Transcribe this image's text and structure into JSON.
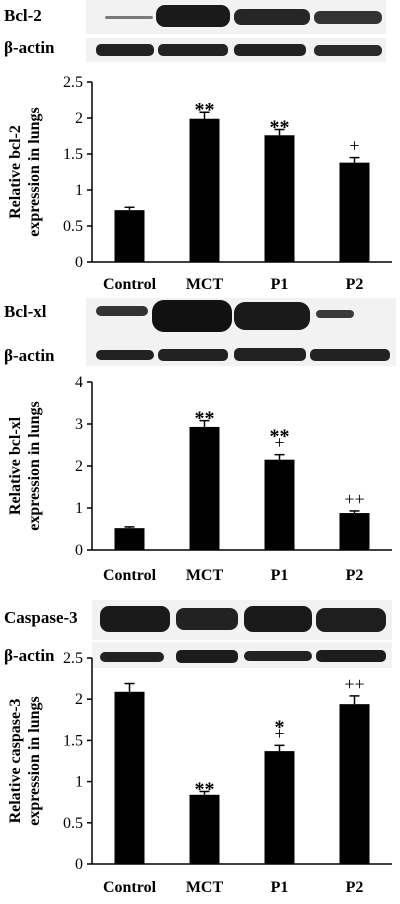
{
  "panels": [
    {
      "blots": {
        "target_label": "Bcl-2",
        "control_label": "β-actin"
      },
      "chart_data": {
        "type": "bar",
        "categories": [
          "Control",
          "MCT",
          "P1",
          "P2"
        ],
        "values": [
          0.72,
          1.99,
          1.76,
          1.38
        ],
        "errors": [
          0.04,
          0.09,
          0.08,
          0.07
        ],
        "annotations": [
          [],
          [
            "**"
          ],
          [
            "**"
          ],
          [
            "+"
          ]
        ],
        "ylabel_lines": [
          "Relative bcl-2",
          "expression in lungs"
        ],
        "xlabel": "",
        "ylim": [
          0,
          2.5
        ],
        "yticks": [
          0,
          0.5,
          1,
          1.5,
          2,
          2.5
        ],
        "grid": false,
        "bar_color": "#000000"
      }
    },
    {
      "blots": {
        "target_label": "Bcl-xl",
        "control_label": "β-actin"
      },
      "chart_data": {
        "type": "bar",
        "categories": [
          "Control",
          "MCT",
          "P1",
          "P2"
        ],
        "values": [
          0.52,
          2.93,
          2.15,
          0.88
        ],
        "errors": [
          0.03,
          0.15,
          0.12,
          0.05
        ],
        "annotations": [
          [],
          [
            "**"
          ],
          [
            "**",
            "+"
          ],
          [
            "++"
          ]
        ],
        "ylabel_lines": [
          "Relative bcl-xl",
          "expression in lungs"
        ],
        "xlabel": "",
        "ylim": [
          0,
          4
        ],
        "yticks": [
          0,
          1,
          2,
          3,
          4
        ],
        "grid": false,
        "bar_color": "#000000"
      }
    },
    {
      "blots": {
        "target_label": "Caspase-3",
        "control_label": "β-actin"
      },
      "chart_data": {
        "type": "bar",
        "categories": [
          "Control",
          "MCT",
          "P1",
          "P2"
        ],
        "values": [
          2.09,
          0.84,
          1.37,
          1.94
        ],
        "errors": [
          0.1,
          0.04,
          0.07,
          0.1
        ],
        "annotations": [
          [],
          [
            "**"
          ],
          [
            "*",
            "+"
          ],
          [
            "++"
          ]
        ],
        "ylabel_lines": [
          "Relative caspase-3",
          "expression in lungs"
        ],
        "xlabel": "",
        "ylim": [
          0,
          2.5
        ],
        "yticks": [
          0,
          0.5,
          1,
          1.5,
          2,
          2.5
        ],
        "grid": false,
        "bar_color": "#000000"
      }
    }
  ]
}
